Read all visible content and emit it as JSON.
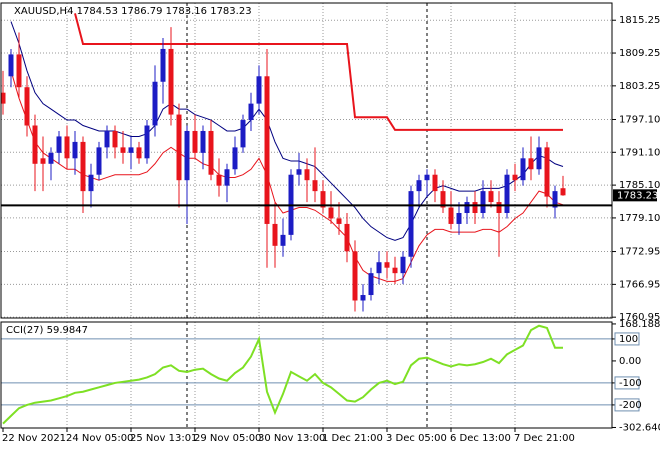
{
  "chart_data": [
    {
      "type": "candlestick",
      "title": "XAUUSD,H4 1784.53 1786.79 1783.16 1783.23",
      "categories": [
        "22 Nov 2021",
        null,
        null,
        null,
        null,
        null,
        null,
        null,
        "24 Nov 05:00",
        null,
        null,
        null,
        null,
        null,
        null,
        null,
        "25 Nov 13:01",
        null,
        null,
        null,
        null,
        null,
        null,
        null,
        "29 Nov 05:00",
        null,
        null,
        null,
        null,
        null,
        null,
        null,
        "30 Nov 13:00",
        null,
        null,
        null,
        null,
        null,
        null,
        null,
        "1 Dec 21:00",
        null,
        null,
        null,
        null,
        null,
        null,
        null,
        "3 Dec 05:00",
        null,
        null,
        null,
        null,
        null,
        null,
        null,
        "6 Dec 13:00",
        null,
        null,
        null,
        null,
        null,
        null,
        null,
        "7 Dec 21:00",
        null,
        null,
        null,
        null,
        null,
        null
      ],
      "open": [
        1802,
        1805,
        1809,
        1803,
        1796,
        1790,
        1789,
        1791,
        1794,
        1790,
        1793,
        1784,
        1787,
        1792,
        1795,
        1792,
        1791,
        1792,
        1790,
        1796,
        1804,
        1810,
        1798,
        1786,
        1795,
        1791,
        1795,
        1787,
        1785,
        1788,
        1792,
        1797,
        1800,
        1805,
        1778,
        1774,
        1776,
        1787,
        1788,
        1786,
        1784,
        1781,
        1779,
        1778,
        1773,
        1764,
        1765,
        1769,
        1771,
        1770,
        1769,
        1772,
        1784,
        1786,
        1787,
        1784,
        1781,
        1778,
        1780,
        1782,
        1780,
        1784,
        1782,
        1780,
        1787,
        1786,
        1790,
        1788,
        1792,
        1781,
        1784.53
      ],
      "high": [
        1806,
        1810,
        1813,
        1805,
        1798,
        1794,
        1792,
        1795,
        1796,
        1795,
        1794,
        1789,
        1793,
        1796,
        1796,
        1795,
        1794,
        1793,
        1797,
        1807,
        1812,
        1814,
        1800,
        1796,
        1798,
        1796,
        1797,
        1790,
        1789,
        1794,
        1798,
        1802,
        1807,
        1810,
        1782,
        1779,
        1788,
        1791,
        1790,
        1792,
        1786,
        1784,
        1782,
        1780,
        1775,
        1767,
        1770,
        1773,
        1773,
        1772,
        1773,
        1785,
        1787,
        1788,
        1788,
        1786,
        1784,
        1782,
        1783,
        1784,
        1786,
        1786,
        1784,
        1788,
        1789,
        1792,
        1794,
        1794,
        1793,
        1785,
        1786.79
      ],
      "low": [
        1798,
        1803,
        1801,
        1794,
        1784,
        1784,
        1786,
        1789,
        1788,
        1787,
        1780,
        1781,
        1786,
        1790,
        1790,
        1789,
        1788,
        1789,
        1789,
        1794,
        1800,
        1796,
        1781,
        1778,
        1790,
        1788,
        1786,
        1783,
        1782,
        1787,
        1791,
        1795,
        1798,
        1770,
        1770,
        1772,
        1775,
        1785,
        1782,
        1782,
        1780,
        1778,
        1776,
        1771,
        1762,
        1762,
        1764,
        1767,
        1768,
        1767,
        1767,
        1770,
        1781,
        1783,
        1782,
        1780,
        1777,
        1776,
        1778,
        1778,
        1779,
        1781,
        1772,
        1779,
        1784,
        1785,
        1786,
        1787,
        1781,
        1779,
        1783.16
      ],
      "close": [
        1800,
        1809,
        1803,
        1796,
        1789,
        1789,
        1791,
        1794,
        1790,
        1793,
        1784,
        1787,
        1792,
        1795,
        1792,
        1791,
        1792,
        1790,
        1796,
        1804,
        1810,
        1798,
        1786,
        1795,
        1791,
        1795,
        1787,
        1785,
        1788,
        1792,
        1797,
        1800,
        1805,
        1778,
        1774,
        1776,
        1787,
        1788,
        1786,
        1784,
        1781,
        1779,
        1778,
        1773,
        1764,
        1765,
        1769,
        1771,
        1770,
        1769,
        1772,
        1784,
        1786,
        1787,
        1784,
        1781,
        1778,
        1780,
        1782,
        1780,
        1784,
        1782,
        1780,
        1787,
        1786,
        1790,
        1788,
        1792,
        1783,
        1784,
        1783.23
      ],
      "up_color": "#1c1cc4",
      "down_color": "#e8141c",
      "series": [
        {
          "color": "#e8141c",
          "values": [
            null,
            null,
            null,
            null,
            null,
            null,
            null,
            null,
            null,
            1816.5,
            1810.9,
            1810.9,
            1810.9,
            1810.9,
            1810.9,
            1810.9,
            1810.9,
            1810.9,
            1810.9,
            1810.9,
            1810.9,
            1810.9,
            1810.9,
            1810.9,
            1810.9,
            1810.9,
            1810.9,
            1810.9,
            1810.9,
            1810.9,
            1810.9,
            1810.9,
            1810.9,
            1810.9,
            1810.9,
            1810.9,
            1810.9,
            1810.9,
            1810.9,
            1810.9,
            1810.9,
            1810.9,
            1810.9,
            1810.9,
            1797.5,
            1797.5,
            1797.5,
            1797.5,
            1797.5,
            1795.2,
            1795.2,
            1795.2,
            1795.2,
            1795.2,
            1795.2,
            1795.2,
            1795.2,
            1795.2,
            1795.2,
            1795.2,
            1795.2,
            1795.2,
            1795.2,
            1795.2,
            1795.2,
            1795.2,
            1795.2,
            1795.2,
            1795.2,
            1795.2,
            1795.2
          ]
        },
        {
          "color": "#000080",
          "values": [
            null,
            1815,
            1811,
            1806,
            1802,
            1800,
            1799,
            1798,
            1797,
            1797,
            1796,
            1795.5,
            1795,
            1795,
            1795,
            1794.5,
            1794,
            1794,
            1794.5,
            1796,
            1799,
            1800,
            1799,
            1799,
            1798,
            1797.5,
            1797,
            1796,
            1795,
            1795,
            1795.5,
            1797,
            1799,
            1797,
            1793,
            1790,
            1789.5,
            1789.5,
            1789,
            1788.5,
            1787,
            1785.5,
            1784,
            1782.5,
            1781,
            1779,
            1777.5,
            1776.5,
            1775.5,
            1775,
            1775.5,
            1778,
            1781,
            1783,
            1784.5,
            1785,
            1784.5,
            1784,
            1784,
            1784,
            1784.5,
            1784.5,
            1784.5,
            1785,
            1786,
            1787,
            1789,
            1790.5,
            1790,
            1789,
            1788.5
          ]
        },
        {
          "color": "#e8141c",
          "values": [
            null,
            1806,
            1801,
            1797,
            1793,
            1791,
            1790,
            1789,
            1788,
            1788,
            1787,
            1786.5,
            1786,
            1786.5,
            1787,
            1787,
            1787,
            1787,
            1787.5,
            1789,
            1791,
            1792,
            1791,
            1790,
            1790,
            1789,
            1788.5,
            1787,
            1786.5,
            1786.5,
            1787,
            1788,
            1790,
            1787,
            1782,
            1780,
            1780.5,
            1781,
            1781,
            1780.5,
            1779.5,
            1778.5,
            1777,
            1775.5,
            1772,
            1769.5,
            1768.5,
            1768,
            1767.5,
            1767.5,
            1768,
            1771,
            1774,
            1776,
            1777,
            1777,
            1776.5,
            1776.5,
            1776.5,
            1776.5,
            1777,
            1777,
            1776.5,
            1777.5,
            1779,
            1780,
            1782,
            1784,
            1783.5,
            1782,
            1781.5
          ]
        }
      ],
      "hline": 1781.4,
      "last_price": 1783.23,
      "period_separators": [
        23,
        53
      ],
      "ylim": [
        1760.8,
        1818.4
      ],
      "yticks": [
        1815.25,
        1809.25,
        1803.25,
        {
          "value": 1797.1,
          "label": "1797.10"
        },
        {
          "value": 1791.1,
          "label": "1791.10"
        },
        {
          "value": 1785.1,
          "label": "1785.10"
        },
        {
          "value": 1779.1,
          "label": "1779.10"
        },
        1772.95,
        1766.95,
        1760.95
      ],
      "grid": true
    },
    {
      "type": "line",
      "title": "CCI(27) 59.9847",
      "series": [
        {
          "color": "#7ee024",
          "values": [
            -285,
            -250,
            -215,
            -200,
            -190,
            -185,
            -180,
            -170,
            -160,
            -145,
            -140,
            -130,
            -120,
            -110,
            -100,
            -95,
            -90,
            -85,
            -75,
            -60,
            -30,
            -20,
            -45,
            -50,
            -40,
            -35,
            -60,
            -80,
            -90,
            -55,
            -30,
            20,
            100,
            -140,
            -235,
            -150,
            -50,
            -70,
            -90,
            -60,
            -100,
            -120,
            -150,
            -180,
            -185,
            -165,
            -130,
            -100,
            -90,
            -105,
            -95,
            -20,
            10,
            15,
            0,
            -15,
            -25,
            -15,
            -20,
            -15,
            -5,
            10,
            -10,
            30,
            50,
            70,
            140,
            160,
            150,
            60,
            59.9847
          ]
        }
      ],
      "levels": [
        100,
        -100,
        -200
      ],
      "level_color": "#6f8fb0",
      "ylim": [
        -305,
        177
      ],
      "yticks": [
        168.188,
        100,
        {
          "value": 0,
          "label": "0.00"
        },
        -100,
        -200,
        -302.6407
      ],
      "grid": false
    }
  ]
}
